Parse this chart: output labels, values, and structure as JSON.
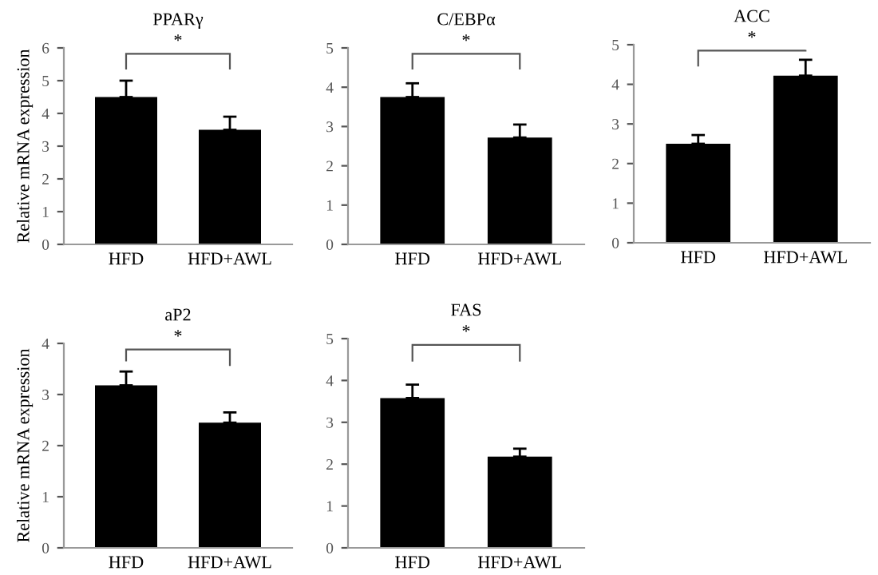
{
  "chart_data": [
    {
      "type": "bar",
      "title": "PPARγ",
      "ylabel": "Relative mRNA expression",
      "categories": [
        "HFD",
        "HFD+AWL"
      ],
      "values": [
        4.5,
        3.5
      ],
      "errors": [
        [
          4.5,
          5.0
        ],
        [
          3.5,
          3.9
        ]
      ],
      "color": "#000000",
      "ylim": [
        0,
        6
      ],
      "yticks": [
        0,
        1,
        2,
        3,
        4,
        5,
        6
      ],
      "annotations": [
        "*"
      ]
    },
    {
      "type": "bar",
      "title": "C/EBPα",
      "categories": [
        "HFD",
        "HFD+AWL"
      ],
      "values": [
        3.75,
        2.72
      ],
      "errors": [
        [
          3.75,
          4.1
        ],
        [
          2.72,
          3.05
        ]
      ],
      "color": "#000000",
      "ylim": [
        0,
        5
      ],
      "yticks": [
        0,
        1,
        2,
        3,
        4,
        5
      ],
      "annotations": [
        "*"
      ]
    },
    {
      "type": "bar",
      "title": "ACC",
      "categories": [
        "HFD",
        "HFD+AWL"
      ],
      "values": [
        2.5,
        4.22
      ],
      "errors": [
        [
          2.5,
          2.72
        ],
        [
          4.22,
          4.62
        ]
      ],
      "color": "#000000",
      "ylim": [
        0,
        5
      ],
      "yticks": [
        0,
        1,
        2,
        3,
        4,
        5
      ],
      "annotations": [
        "*"
      ]
    },
    {
      "type": "bar",
      "title": "aP2",
      "ylabel": "Relative mRNA expression",
      "categories": [
        "HFD",
        "HFD+AWL"
      ],
      "values": [
        3.18,
        2.45
      ],
      "errors": [
        [
          3.18,
          3.45
        ],
        [
          2.45,
          2.65
        ]
      ],
      "color": "#000000",
      "ylim": [
        0,
        4
      ],
      "yticks": [
        0,
        1,
        2,
        3,
        4
      ],
      "annotations": [
        "*"
      ]
    },
    {
      "type": "bar",
      "title": "FAS",
      "categories": [
        "HFD",
        "HFD+AWL"
      ],
      "values": [
        3.58,
        2.18
      ],
      "errors": [
        [
          3.58,
          3.9
        ],
        [
          2.18,
          2.37
        ]
      ],
      "color": "#000000",
      "ylim": [
        0,
        5
      ],
      "yticks": [
        0,
        1,
        2,
        3,
        4,
        5
      ],
      "annotations": [
        "*"
      ]
    }
  ]
}
